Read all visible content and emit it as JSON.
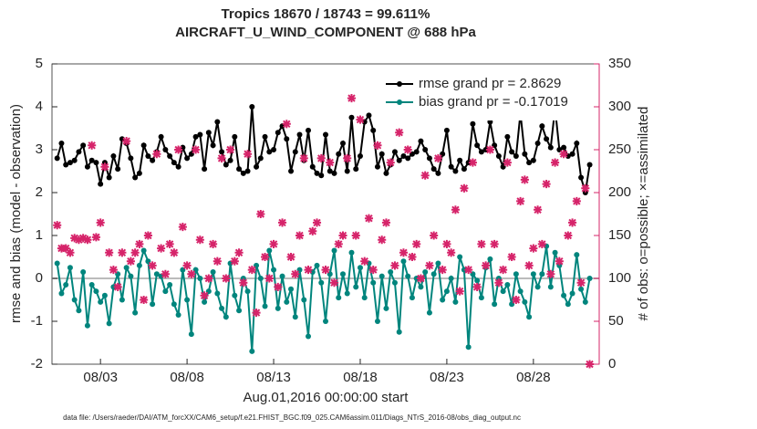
{
  "chart_data": {
    "type": "line",
    "title": "Tropics 18670 / 18743 = 99.611%",
    "subtitle": "AIRCRAFT_U_WIND_COMPONENT @ 688 hPa",
    "xlabel": "Aug.01,2016 00:00:00 start",
    "ylabel": "rmse and bias (model - observation)",
    "y2label": "# of obs: o=possible; ×=assimilated",
    "footnote": "data file: /Users/raeder/DAI/ATM_forcXX/CAM6_setup/f.e21.FHIST_BGC.f09_025.CAM6assim.011/Diags_NTrS_2016-08/obs_diag_output.nc",
    "legend": "northeast",
    "xlim": [
      0.2,
      31.8
    ],
    "xticks": [
      {
        "value": 3,
        "label": "08/03"
      },
      {
        "value": 8,
        "label": "08/08"
      },
      {
        "value": 13,
        "label": "08/13"
      },
      {
        "value": 18,
        "label": "08/18"
      },
      {
        "value": 23,
        "label": "08/23"
      },
      {
        "value": 28,
        "label": "08/28"
      }
    ],
    "ylim": [
      -2,
      5
    ],
    "yticks": [
      -2,
      -1,
      0,
      1,
      2,
      3,
      4,
      5
    ],
    "y2lim": [
      0,
      350
    ],
    "y2ticks": [
      0,
      50,
      100,
      150,
      200,
      250,
      300,
      350
    ],
    "y2color": "#d6246a",
    "zero_line_color": "#bbbbbb",
    "x": [
      0.5,
      0.75,
      1,
      1.25,
      1.5,
      1.75,
      2,
      2.25,
      2.5,
      2.75,
      3,
      3.25,
      3.5,
      3.75,
      4,
      4.25,
      4.5,
      4.75,
      5,
      5.25,
      5.5,
      5.75,
      6,
      6.25,
      6.5,
      6.75,
      7,
      7.25,
      7.5,
      7.75,
      8,
      8.25,
      8.5,
      8.75,
      9,
      9.25,
      9.5,
      9.75,
      10,
      10.25,
      10.5,
      10.75,
      11,
      11.25,
      11.5,
      11.75,
      12,
      12.25,
      12.5,
      12.75,
      13,
      13.25,
      13.5,
      13.75,
      14,
      14.25,
      14.5,
      14.75,
      15,
      15.25,
      15.5,
      15.75,
      16,
      16.25,
      16.5,
      16.75,
      17,
      17.25,
      17.5,
      17.75,
      18,
      18.25,
      18.5,
      18.75,
      19,
      19.25,
      19.5,
      19.75,
      20,
      20.25,
      20.5,
      20.75,
      21,
      21.25,
      21.5,
      21.75,
      22,
      22.25,
      22.5,
      22.75,
      23,
      23.25,
      23.5,
      23.75,
      24,
      24.25,
      24.5,
      24.75,
      25,
      25.25,
      25.5,
      25.75,
      26,
      26.25,
      26.5,
      26.75,
      27,
      27.25,
      27.5,
      27.75,
      28,
      28.25,
      28.5,
      28.75,
      29,
      29.25,
      29.5,
      29.75,
      30,
      30.25,
      30.5,
      30.75,
      31,
      31.25
    ],
    "series": [
      {
        "name": "rmse grand pr = 2.8629",
        "color": "#000000",
        "values": [
          2.8,
          3.15,
          2.65,
          2.7,
          2.75,
          2.95,
          3.1,
          2.6,
          2.75,
          2.7,
          2.2,
          2.7,
          2.35,
          2.85,
          2.55,
          3.25,
          3.15,
          2.8,
          2.35,
          2.45,
          3.1,
          2.85,
          2.75,
          2.95,
          3.3,
          3.0,
          2.85,
          2.7,
          2.6,
          3.05,
          2.8,
          2.9,
          3.3,
          3.35,
          2.55,
          3.4,
          3.1,
          3.65,
          2.95,
          2.65,
          2.75,
          3.3,
          2.55,
          2.45,
          2.5,
          4.0,
          2.6,
          2.8,
          3.3,
          2.95,
          3.0,
          3.4,
          3.55,
          3.25,
          2.5,
          2.95,
          3.35,
          2.75,
          3.45,
          2.6,
          2.45,
          2.4,
          3.35,
          2.5,
          2.45,
          2.9,
          3.15,
          2.5,
          3.75,
          2.55,
          2.85,
          3.65,
          3.8,
          3.45,
          2.6,
          2.9,
          2.45,
          2.65,
          2.95,
          2.75,
          2.85,
          2.8,
          2.9,
          2.95,
          3.2,
          3.0,
          2.8,
          2.55,
          2.45,
          2.9,
          3.45,
          2.6,
          2.5,
          2.75,
          2.55,
          2.7,
          3.6,
          3.1,
          2.95,
          3.0,
          3.65,
          3.1,
          2.85,
          2.6,
          3.3,
          2.95,
          2.85,
          3.85,
          2.9,
          2.7,
          2.75,
          3.15,
          3.55,
          3.25,
          3.05,
          3.97,
          3.0,
          3.05,
          2.85,
          2.9,
          3.15,
          2.35,
          2.0,
          2.65
        ]
      },
      {
        "name": "bias grand pr = -0.17019",
        "color": "#00857d",
        "values": [
          0.35,
          -0.35,
          -0.15,
          0.25,
          -0.5,
          -0.75,
          0.15,
          -1.1,
          -0.15,
          -0.3,
          -0.55,
          -0.4,
          -1.05,
          -0.2,
          0.1,
          -0.5,
          0.25,
          0.05,
          -0.8,
          0.3,
          0.65,
          0.4,
          -0.6,
          0.1,
          0.05,
          -0.3,
          -0.15,
          -0.6,
          -0.85,
          0.2,
          -0.5,
          -1.3,
          0.2,
          0.0,
          -0.55,
          -0.3,
          0.15,
          -0.35,
          -0.7,
          -0.9,
          0.35,
          -0.4,
          -0.75,
          0.0,
          -0.3,
          -1.7,
          0.3,
          0.0,
          -0.65,
          0.65,
          0.2,
          -0.7,
          0.05,
          -0.55,
          -0.25,
          -0.9,
          0.2,
          -0.5,
          -1.35,
          0.15,
          0.3,
          -0.1,
          -1.0,
          0.1,
          0.65,
          -0.45,
          0.1,
          -0.35,
          0.6,
          -0.2,
          0.25,
          -0.45,
          0.35,
          -0.1,
          -1.0,
          0.05,
          -0.7,
          0.15,
          -0.1,
          -1.25,
          0.4,
          0.05,
          -0.45,
          0.0,
          -0.2,
          0.15,
          -0.8,
          0.1,
          0.35,
          -0.5,
          -0.3,
          0.0,
          -0.55,
          0.5,
          0.2,
          -1.6,
          0.1,
          -0.05,
          -0.45,
          0.25,
          0.45,
          -0.6,
          0.0,
          -0.3,
          -0.15,
          -0.6,
          0.1,
          -0.3,
          -0.55,
          -0.9,
          0.1,
          -0.2,
          0.1,
          0.75,
          -0.2,
          0.6,
          0.3,
          -0.4,
          -0.6,
          -0.35,
          0.55,
          -0.25,
          -0.55,
          0.0
        ]
      },
      {
        "type": "scatter",
        "axis": "y2",
        "color": "#d6246a",
        "values": [
          162,
          135,
          135,
          130,
          147,
          145,
          147,
          145,
          255,
          148,
          165,
          230,
          130,
          110,
          90,
          130,
          260,
          120,
          130,
          140,
          75,
          150,
          115,
          245,
          135,
          105,
          140,
          130,
          250,
          160,
          115,
          105,
          250,
          145,
          80,
          100,
          140,
          120,
          240,
          100,
          250,
          120,
          130,
          95,
          245,
          110,
          60,
          175,
          125,
          100,
          140,
          90,
          165,
          280,
          125,
          105,
          150,
          240,
          110,
          155,
          165,
          240,
          110,
          235,
          95,
          140,
          150,
          240,
          310,
          150,
          285,
          120,
          170,
          110,
          255,
          145,
          165,
          235,
          115,
          270,
          130,
          250,
          125,
          140,
          100,
          220,
          115,
          150,
          240,
          110,
          140,
          130,
          180,
          85,
          205,
          110,
          235,
          90,
          140,
          115,
          250,
          140,
          95,
          110,
          235,
          125,
          75,
          190,
          215,
          115,
          135,
          180,
          140,
          210,
          105,
          235,
          120,
          245,
          150,
          165,
          190,
          95,
          205,
          0
        ]
      }
    ]
  }
}
